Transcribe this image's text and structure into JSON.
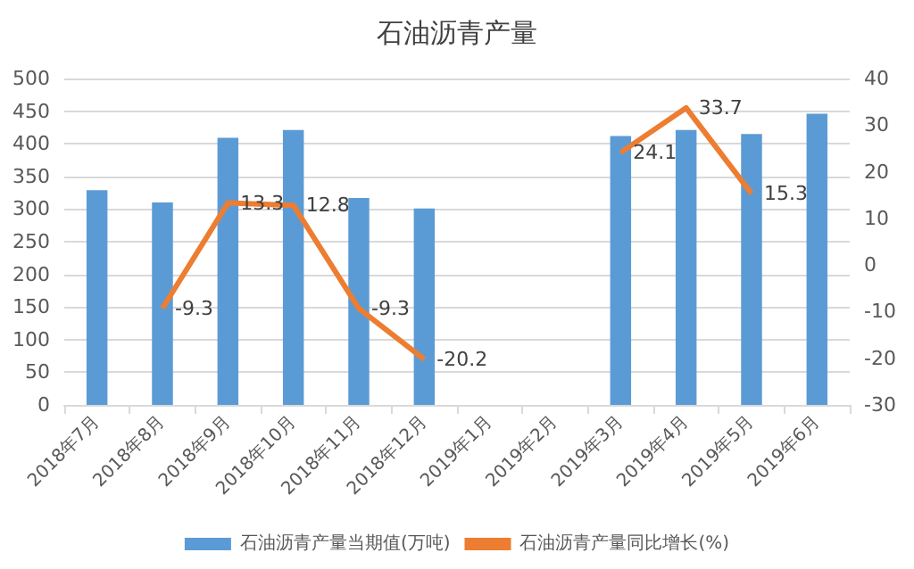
{
  "chart_data": {
    "type": "bar",
    "title": "石油沥青产量",
    "categories": [
      "2018年7月",
      "2018年8月",
      "2018年9月",
      "2018年10月",
      "2018年11月",
      "2018年12月",
      "2019年1月",
      "2019年2月",
      "2019年3月",
      "2019年4月",
      "2019年5月",
      "2019年6月"
    ],
    "series": [
      {
        "name": "石油沥青产量当期值(万吨)",
        "color": "#5b9bd5",
        "values": [
          329,
          310,
          409,
          421,
          317,
          301,
          null,
          null,
          412,
          421,
          415,
          446
        ]
      },
      {
        "name": "石油沥青产量同比增长(%)",
        "type": "line",
        "axis": "y2",
        "color": "#ed7d31",
        "values": [
          null,
          -9.3,
          13.3,
          12.8,
          -9.3,
          -20.2,
          null,
          null,
          24.1,
          33.7,
          15.3,
          null
        ],
        "value_labels": [
          null,
          "-9.3",
          "13.3",
          "12.8",
          "-9.3",
          "-20.2",
          null,
          null,
          "24.1",
          "33.7",
          "15.3",
          null
        ]
      }
    ],
    "ylim": [
      0,
      500
    ],
    "yticks": [
      0,
      50,
      100,
      150,
      200,
      250,
      300,
      350,
      400,
      450,
      500
    ],
    "y2lim": [
      -30,
      40
    ],
    "y2ticks": [
      -30,
      -20,
      -10,
      0,
      10,
      20,
      30,
      40
    ],
    "grid": "y",
    "legend": "bottom",
    "marker": "none"
  }
}
